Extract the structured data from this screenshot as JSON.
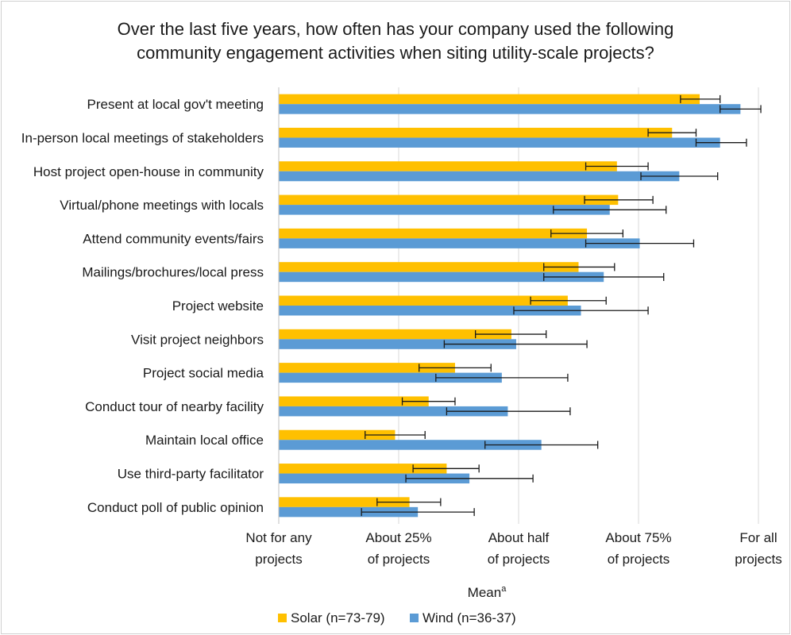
{
  "chart_data": {
    "type": "bar",
    "orientation": "horizontal",
    "title_lines": [
      "Over the last five years, how often has your company used the following",
      "community engagement activities when siting utility-scale projects?"
    ],
    "categories": [
      "Present at local gov't meeting",
      "In-person local meetings of stakeholders",
      "Host project open-house in community",
      "Virtual/phone meetings with locals",
      "Attend community events/fairs",
      "Mailings/brochures/local press",
      "Project website",
      "Visit project neighbors",
      "Project social media",
      "Conduct tour of nearby facility",
      "Maintain local office",
      "Use third-party facilitator",
      "Conduct poll of public opinion"
    ],
    "series": [
      {
        "name": "Solar (n=73-79)",
        "color": "#FFC000",
        "values": [
          3.51,
          3.28,
          2.82,
          2.83,
          2.57,
          2.5,
          2.41,
          1.94,
          1.47,
          1.25,
          0.97,
          1.4,
          1.09
        ],
        "err_low": [
          3.35,
          3.08,
          2.56,
          2.55,
          2.27,
          2.21,
          2.1,
          1.64,
          1.17,
          1.03,
          0.72,
          1.12,
          0.82
        ],
        "err_high": [
          3.68,
          3.48,
          3.08,
          3.12,
          2.87,
          2.8,
          2.73,
          2.23,
          1.77,
          1.47,
          1.22,
          1.67,
          1.35
        ]
      },
      {
        "name": "Wind (n=36-37)",
        "color": "#5B9BD5",
        "values": [
          3.85,
          3.68,
          3.34,
          2.76,
          3.01,
          2.71,
          2.52,
          1.98,
          1.86,
          1.91,
          2.19,
          1.59,
          1.16
        ],
        "err_low": [
          3.68,
          3.48,
          3.02,
          2.29,
          2.56,
          2.21,
          1.96,
          1.38,
          1.31,
          1.4,
          1.72,
          1.06,
          0.69
        ],
        "err_high": [
          4.02,
          3.9,
          3.66,
          3.23,
          3.46,
          3.21,
          3.08,
          2.57,
          2.41,
          2.43,
          2.66,
          2.12,
          1.63
        ]
      }
    ],
    "xlim": [
      0,
      4
    ],
    "ticks": [
      {
        "value": 0,
        "lines": [
          "Not for any",
          "projects"
        ]
      },
      {
        "value": 1,
        "lines": [
          "About 25%",
          "of projects"
        ]
      },
      {
        "value": 2,
        "lines": [
          "About half",
          "of projects"
        ]
      },
      {
        "value": 3,
        "lines": [
          "About 75%",
          "of projects"
        ]
      },
      {
        "value": 4,
        "lines": [
          "For all",
          "projects"
        ]
      }
    ],
    "xlabel": "Mean",
    "xlabel_superscript": "a",
    "grid": "vertical",
    "legend": "bottom"
  }
}
